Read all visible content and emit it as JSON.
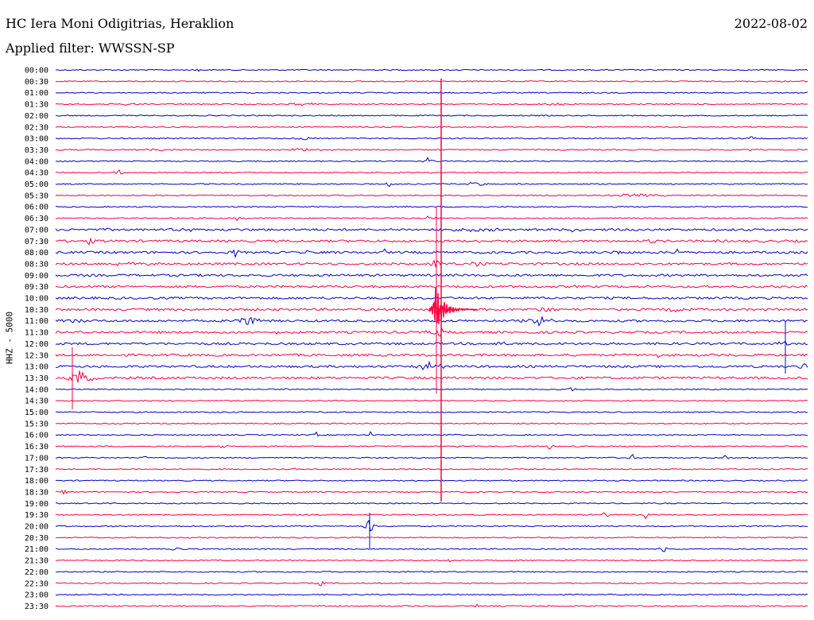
{
  "header": {
    "station": "HC Iera Moni Odigitrias, Heraklion",
    "filter": "Applied filter: WWSSN-SP",
    "date": "2022-08-02"
  },
  "axis_label": "HHZ - 5000",
  "colors": {
    "odd": "#0000cc",
    "even": "#ff0040"
  },
  "chart_data": {
    "type": "line",
    "ylabel": "HHZ - 5000",
    "ytick_labels": [
      "00:00",
      "00:30",
      "01:00",
      "01:30",
      "02:00",
      "02:30",
      "03:00",
      "03:30",
      "04:00",
      "04:30",
      "05:00",
      "05:30",
      "06:00",
      "06:30",
      "07:00",
      "07:30",
      "08:00",
      "08:30",
      "09:00",
      "09:30",
      "10:00",
      "10:30",
      "11:00",
      "11:30",
      "12:00",
      "12:30",
      "13:00",
      "13:30",
      "14:00",
      "14:30",
      "15:00",
      "15:30",
      "16:00",
      "16:30",
      "17:00",
      "17:30",
      "18:00",
      "18:30",
      "19:00",
      "19:30",
      "20:00",
      "20:30",
      "21:00",
      "21:30",
      "22:00",
      "22:30",
      "23:00",
      "23:30"
    ],
    "grid": false,
    "legend": "none"
  }
}
